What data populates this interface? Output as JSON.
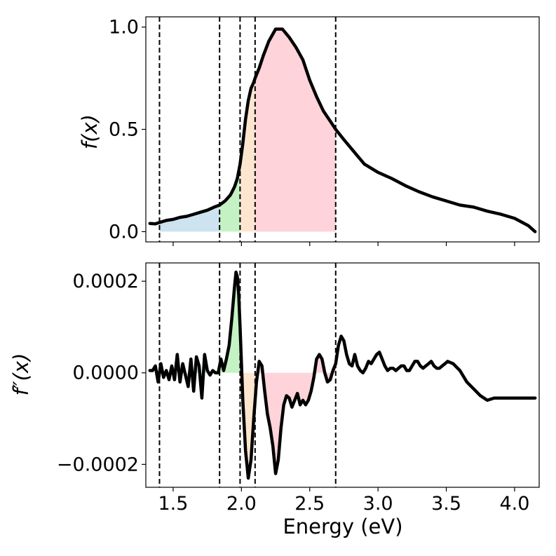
{
  "chart_data": [
    {
      "type": "line",
      "ylabel": "f(x)",
      "xlim": [
        1.3,
        4.18
      ],
      "ylim": [
        -0.05,
        1.05
      ],
      "yticks": [
        {
          "value": 0.0,
          "label": "0.0"
        },
        {
          "value": 0.5,
          "label": "0.5"
        },
        {
          "value": 1.0,
          "label": "1.0"
        }
      ],
      "vlines": [
        1.4,
        1.84,
        1.99,
        2.1,
        2.69
      ],
      "regions": [
        {
          "x0": 1.4,
          "x1": 1.84,
          "color": "#cde3ef"
        },
        {
          "x0": 1.84,
          "x1": 1.99,
          "color": "#c5f2c5"
        },
        {
          "x0": 1.99,
          "x1": 2.1,
          "color": "#fde6cf"
        },
        {
          "x0": 2.1,
          "x1": 2.69,
          "color": "#fed3da"
        }
      ],
      "series": [
        {
          "x": [
            1.33,
            1.37,
            1.4,
            1.45,
            1.5,
            1.55,
            1.6,
            1.65,
            1.7,
            1.75,
            1.8,
            1.84,
            1.88,
            1.92,
            1.95,
            1.97,
            1.99,
            2.01,
            2.03,
            2.05,
            2.07,
            2.09,
            2.1,
            2.13,
            2.16,
            2.2,
            2.25,
            2.3,
            2.35,
            2.4,
            2.45,
            2.5,
            2.55,
            2.6,
            2.65,
            2.69,
            2.75,
            2.8,
            2.9,
            3.0,
            3.1,
            3.2,
            3.3,
            3.4,
            3.5,
            3.6,
            3.7,
            3.8,
            3.9,
            4.0,
            4.1,
            4.15
          ],
          "y": [
            0.04,
            0.038,
            0.045,
            0.055,
            0.06,
            0.07,
            0.075,
            0.085,
            0.095,
            0.105,
            0.12,
            0.13,
            0.15,
            0.18,
            0.22,
            0.26,
            0.33,
            0.43,
            0.55,
            0.64,
            0.7,
            0.73,
            0.75,
            0.8,
            0.86,
            0.93,
            0.99,
            0.99,
            0.95,
            0.9,
            0.84,
            0.74,
            0.66,
            0.59,
            0.54,
            0.5,
            0.45,
            0.41,
            0.33,
            0.29,
            0.26,
            0.225,
            0.195,
            0.17,
            0.15,
            0.13,
            0.12,
            0.1,
            0.085,
            0.065,
            0.03,
            0.0
          ]
        }
      ]
    },
    {
      "type": "line",
      "xlabel": "Energy (eV)",
      "ylabel": "f″(x)",
      "xlim": [
        1.3,
        4.18
      ],
      "ylim": [
        -0.00025,
        0.00024
      ],
      "xticks": [
        {
          "value": 1.5,
          "label": "1.5"
        },
        {
          "value": 2.0,
          "label": "2.0"
        },
        {
          "value": 2.5,
          "label": "2.5"
        },
        {
          "value": 3.0,
          "label": "3.0"
        },
        {
          "value": 3.5,
          "label": "3.5"
        },
        {
          "value": 4.0,
          "label": "4.0"
        }
      ],
      "yticks": [
        {
          "value": 0.0002,
          "label": "0.0002"
        },
        {
          "value": 0.0,
          "label": "0.0000"
        },
        {
          "value": -0.0002,
          "label": "−0.0002"
        }
      ],
      "vlines": [
        1.4,
        1.84,
        1.99,
        2.1,
        2.69
      ],
      "regions": [
        {
          "x0": 1.4,
          "x1": 1.84,
          "color": "#cde3ef"
        },
        {
          "x0": 1.84,
          "x1": 1.99,
          "color": "#c5f2c5"
        },
        {
          "x0": 1.99,
          "x1": 2.1,
          "color": "#fde6cf"
        },
        {
          "x0": 2.1,
          "x1": 2.69,
          "color": "#fed3da"
        }
      ],
      "series": [
        {
          "x": [
            1.33,
            1.35,
            1.37,
            1.39,
            1.41,
            1.43,
            1.45,
            1.47,
            1.49,
            1.51,
            1.53,
            1.55,
            1.57,
            1.59,
            1.61,
            1.63,
            1.65,
            1.67,
            1.69,
            1.71,
            1.73,
            1.75,
            1.77,
            1.79,
            1.81,
            1.83,
            1.85,
            1.87,
            1.89,
            1.91,
            1.93,
            1.95,
            1.96,
            1.97,
            1.98,
            1.99,
            2.0,
            2.01,
            2.03,
            2.05,
            2.07,
            2.09,
            2.11,
            2.13,
            2.15,
            2.17,
            2.19,
            2.21,
            2.23,
            2.25,
            2.27,
            2.29,
            2.31,
            2.33,
            2.35,
            2.37,
            2.39,
            2.41,
            2.43,
            2.45,
            2.47,
            2.49,
            2.51,
            2.53,
            2.55,
            2.57,
            2.59,
            2.61,
            2.63,
            2.65,
            2.67,
            2.69,
            2.71,
            2.73,
            2.75,
            2.77,
            2.79,
            2.81,
            2.83,
            2.85,
            2.87,
            2.89,
            2.91,
            2.93,
            2.95,
            2.97,
            2.99,
            3.01,
            3.03,
            3.05,
            3.07,
            3.09,
            3.11,
            3.13,
            3.15,
            3.17,
            3.19,
            3.21,
            3.23,
            3.25,
            3.27,
            3.29,
            3.31,
            3.33,
            3.35,
            3.37,
            3.39,
            3.41,
            3.43,
            3.45,
            3.47,
            3.49,
            3.51,
            3.55,
            3.6,
            3.65,
            3.7,
            3.75,
            3.8,
            3.85,
            3.9,
            3.95,
            4.0,
            4.05,
            4.1,
            4.15
          ],
          "y": [
            5e-06,
            5e-06,
            1.5e-05,
            -2e-05,
            2e-05,
            -1e-05,
            5e-06,
            -1.5e-05,
            1.5e-05,
            -1.5e-05,
            4e-05,
            -2e-05,
            2e-05,
            -5e-06,
            -3e-05,
            3e-05,
            -4e-05,
            3.5e-05,
            1.5e-05,
            -5.5e-05,
            4e-05,
            5e-06,
            -5e-06,
            5e-06,
            0.0,
            0.0,
            3e-05,
            5e-06,
            3e-05,
            6e-05,
            0.00012,
            0.00019,
            0.00022,
            0.00021,
            0.00017,
            0.0001,
            2e-05,
            -6e-05,
            -0.00017,
            -0.00023,
            -0.00019,
            -0.0001,
            -2e-05,
            2.5e-05,
            1.5e-05,
            -4e-05,
            -9e-05,
            -0.00012,
            -0.00016,
            -0.00022,
            -0.00019,
            -0.00012,
            -7e-05,
            -5e-05,
            -5.5e-05,
            -7.5e-05,
            -6e-05,
            -4.5e-05,
            -7e-05,
            -6e-05,
            -7e-05,
            -6e-05,
            -4e-05,
            -1e-05,
            3e-05,
            4e-05,
            3e-05,
            0.0,
            -2e-05,
            -1.5e-05,
            5e-06,
            2e-05,
            6e-05,
            8e-05,
            7e-05,
            4e-05,
            2e-05,
            1.5e-05,
            4e-05,
            1.5e-05,
            5e-06,
            0.0,
            1e-05,
            2.5e-05,
            2e-05,
            3e-05,
            4e-05,
            4.5e-05,
            3e-05,
            1.5e-05,
            5e-06,
            1e-05,
            1e-05,
            5e-06,
            1e-05,
            1.5e-05,
            1.5e-05,
            5e-06,
            5e-06,
            1.5e-05,
            2.5e-05,
            2.5e-05,
            1.5e-05,
            1e-05,
            1.5e-05,
            2e-05,
            2.5e-05,
            1.5e-05,
            1e-05,
            1e-05,
            1.5e-05,
            2e-05,
            2.5e-05,
            2e-05,
            5e-06,
            -2e-05,
            -3.5e-05,
            -5e-05,
            -6e-05,
            -5.5e-05,
            -5.5e-05,
            -5.5e-05,
            -5.5e-05,
            -5.5e-05,
            -5.5e-05,
            -5.5e-05
          ]
        }
      ]
    }
  ]
}
